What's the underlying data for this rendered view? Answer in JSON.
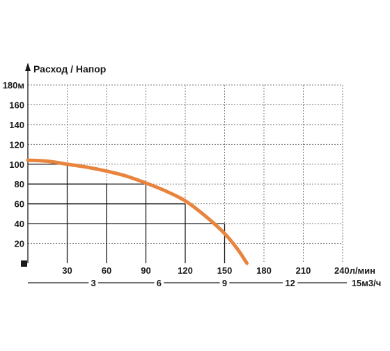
{
  "chart_data": {
    "type": "line",
    "title": "Расход / Напор",
    "ylabel": "м",
    "xlabel": "л/мин",
    "x2label": "м3/ч",
    "ylim": [
      0,
      180
    ],
    "xlim": [
      0,
      240
    ],
    "yticks": [
      20,
      40,
      60,
      80,
      100,
      120,
      140,
      160,
      180
    ],
    "ytick_labels": [
      "20",
      "40",
      "60",
      "80",
      "100",
      "120",
      "140",
      "160",
      "180м"
    ],
    "xticks": [
      30,
      60,
      90,
      120,
      150,
      180,
      210,
      240
    ],
    "xtick_labels": [
      "30",
      "60",
      "90",
      "120",
      "150",
      "180",
      "210",
      "240л/мин"
    ],
    "x2ticks": [
      3,
      6,
      9,
      12,
      15
    ],
    "x2tick_labels": [
      "3",
      "6",
      "9",
      "12",
      "15м3/ч"
    ],
    "series": [
      {
        "color": "#e8843e",
        "x": [
          0,
          15,
          30,
          45,
          60,
          75,
          90,
          105,
          120,
          135,
          150,
          160,
          167
        ],
        "y": [
          104,
          103,
          100,
          97,
          93,
          88,
          81,
          73,
          63,
          48,
          30,
          14,
          0
        ]
      }
    ],
    "reference_points": [
      {
        "x": 30,
        "y": 100
      },
      {
        "x": 60,
        "y": 80
      },
      {
        "x": 90,
        "y": 80
      },
      {
        "x": 120,
        "y": 60
      },
      {
        "x": 150,
        "y": 40
      }
    ],
    "grid": true,
    "grid_style": "dashed",
    "colors": {
      "curve": "#e8843e",
      "grid": "#7a7a7a",
      "axis": "#1a1a1a",
      "text": "#1a1a1a"
    }
  }
}
